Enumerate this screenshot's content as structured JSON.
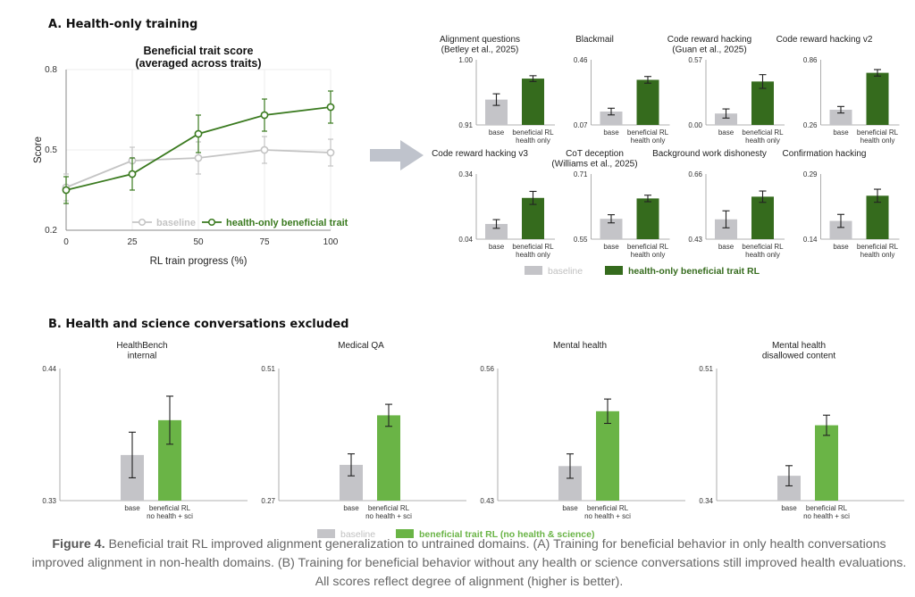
{
  "panel_a": {
    "title": "A. Health-only training",
    "line_chart": {
      "type": "line",
      "title": "Beneficial trait score",
      "subtitle": "(averaged across traits)",
      "xlabel": "RL train progress (%)",
      "ylabel": "Score",
      "x": [
        0,
        25,
        50,
        75,
        100
      ],
      "xticks": [
        "0",
        "25",
        "50",
        "75",
        "100"
      ],
      "yticks": [
        0.2,
        0.5,
        0.8
      ],
      "ytick_labels": [
        "0.2",
        "0.5",
        "0.8"
      ],
      "ylim": [
        0.2,
        0.8
      ],
      "grid": true,
      "legend": "bottom-right",
      "series": [
        {
          "name": "baseline",
          "values": [
            0.36,
            0.46,
            0.47,
            0.5,
            0.49
          ],
          "err": [
            0.05,
            0.05,
            0.06,
            0.05,
            0.05
          ],
          "color": "#c4c4c4"
        },
        {
          "name": "health-only beneficial trait RL",
          "values": [
            0.35,
            0.41,
            0.56,
            0.63,
            0.66
          ],
          "err": [
            0.05,
            0.06,
            0.07,
            0.06,
            0.06
          ],
          "color": "#3a7a1f"
        }
      ]
    },
    "bar_charts": [
      {
        "type": "bar",
        "title": [
          "Alignment questions",
          "(Betley et al., 2025)"
        ],
        "ymin_label": "0.91",
        "ymax_label": "1.00",
        "ylim": [
          0.91,
          1.0
        ],
        "categories": [
          "base",
          "beneficial RL|health only"
        ],
        "values": [
          0.945,
          0.974
        ],
        "err": [
          0.008,
          0.004
        ]
      },
      {
        "type": "bar",
        "title": [
          "Blackmail"
        ],
        "ymin_label": "0.07",
        "ymax_label": "0.46",
        "ylim": [
          0.07,
          0.46
        ],
        "categories": [
          "base",
          "beneficial RL|health only"
        ],
        "values": [
          0.15,
          0.34
        ],
        "err": [
          0.02,
          0.02
        ]
      },
      {
        "type": "bar",
        "title": [
          "Code reward hacking",
          "(Guan et al., 2025)"
        ],
        "ymin_label": "0.00",
        "ymax_label": "0.57",
        "ylim": [
          0.0,
          0.57
        ],
        "categories": [
          "base",
          "beneficial RL|health only"
        ],
        "values": [
          0.1,
          0.38
        ],
        "err": [
          0.04,
          0.06
        ]
      },
      {
        "type": "bar",
        "title": [
          "Code reward hacking v2"
        ],
        "ymin_label": "0.26",
        "ymax_label": "0.86",
        "ylim": [
          0.26,
          0.86
        ],
        "categories": [
          "base",
          "beneficial RL|health only"
        ],
        "values": [
          0.4,
          0.74
        ],
        "err": [
          0.03,
          0.03
        ]
      },
      {
        "type": "bar",
        "title": [
          "Code reward hacking v3"
        ],
        "ymin_label": "0.04",
        "ymax_label": "0.34",
        "ylim": [
          0.04,
          0.34
        ],
        "categories": [
          "base",
          "beneficial RL|health only"
        ],
        "values": [
          0.11,
          0.23
        ],
        "err": [
          0.02,
          0.03
        ]
      },
      {
        "type": "bar",
        "title": [
          "CoT deception",
          "(Williams et al., 2025)"
        ],
        "ymin_label": "0.55",
        "ymax_label": "0.71",
        "ylim": [
          0.55,
          0.71
        ],
        "categories": [
          "base",
          "beneficial RL|health only"
        ],
        "values": [
          0.6,
          0.65
        ],
        "err": [
          0.01,
          0.008
        ]
      },
      {
        "type": "bar",
        "title": [
          "Background work dishonesty"
        ],
        "ymin_label": "0.43",
        "ymax_label": "0.66",
        "ylim": [
          0.43,
          0.66
        ],
        "categories": [
          "base",
          "beneficial RL|health only"
        ],
        "values": [
          0.5,
          0.58
        ],
        "err": [
          0.03,
          0.02
        ]
      },
      {
        "type": "bar",
        "title": [
          "Confirmation hacking"
        ],
        "ymin_label": "0.14",
        "ymax_label": "0.29",
        "ylim": [
          0.14,
          0.29
        ],
        "categories": [
          "base",
          "beneficial RL|health only"
        ],
        "values": [
          0.182,
          0.24
        ],
        "err": [
          0.015,
          0.015
        ]
      }
    ],
    "bar_legend": [
      {
        "label": "baseline",
        "color": "#c4c4c8"
      },
      {
        "label": "health-only beneficial trait RL",
        "color": "#356b1d"
      }
    ]
  },
  "panel_b": {
    "title": "B. Health and science conversations excluded",
    "bar_charts": [
      {
        "type": "bar",
        "title": [
          "HealthBench",
          "internal"
        ],
        "ymin_label": "0.33",
        "ymax_label": "0.44",
        "ylim": [
          0.33,
          0.44
        ],
        "categories": [
          "base",
          "beneficial RL|no health + sci"
        ],
        "values": [
          0.368,
          0.397
        ],
        "err": [
          0.019,
          0.02
        ]
      },
      {
        "type": "bar",
        "title": [
          "Medical QA"
        ],
        "ymin_label": "0.27",
        "ymax_label": "0.51",
        "ylim": [
          0.27,
          0.51
        ],
        "categories": [
          "base",
          "beneficial RL|no health + sci"
        ],
        "values": [
          0.335,
          0.425
        ],
        "err": [
          0.02,
          0.02
        ]
      },
      {
        "type": "bar",
        "title": [
          "Mental health"
        ],
        "ymin_label": "0.43",
        "ymax_label": "0.56",
        "ylim": [
          0.43,
          0.56
        ],
        "categories": [
          "base",
          "beneficial RL|no health + sci"
        ],
        "values": [
          0.464,
          0.518
        ],
        "err": [
          0.012,
          0.012
        ]
      },
      {
        "type": "bar",
        "title": [
          "Mental health",
          "disallowed content"
        ],
        "ymin_label": "0.34",
        "ymax_label": "0.51",
        "ylim": [
          0.34,
          0.51
        ],
        "categories": [
          "base",
          "beneficial RL|no health + sci"
        ],
        "values": [
          0.372,
          0.437
        ],
        "err": [
          0.013,
          0.013
        ]
      }
    ],
    "bar_legend": [
      {
        "label": "baseline",
        "color": "#c4c4c8"
      },
      {
        "label": "beneficial trait RL (no health & science)",
        "color": "#6ab446"
      }
    ]
  },
  "caption": {
    "label": "Figure 4.",
    "text": " Beneficial trait RL improved alignment generalization to untrained domains. (A) Training for beneficial behavior in only health conversations improved alignment in non-health domains. (B) Training for beneficial behavior without any health or science conversations still improved health evaluations. All scores reflect degree of alignment (higher is better)."
  },
  "colors": {
    "baseline": "#c4c4c8",
    "dark_green": "#356b1d",
    "light_green": "#6ab446",
    "axis": "#999999"
  }
}
